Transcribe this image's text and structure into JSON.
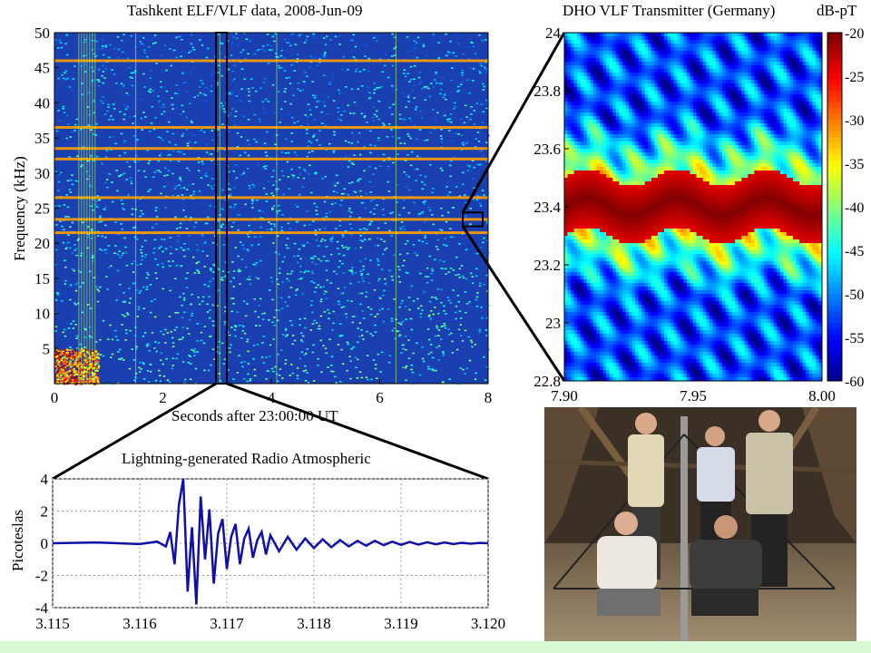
{
  "colors": {
    "spectrogram_bg": "#1a3fb0",
    "waveform": "#1010a8",
    "footer_band": "#d8f8d4"
  },
  "chart_data": [
    {
      "type": "heatmap",
      "title": "Tashkent ELF/VLF data, 2008-Jun-09",
      "xlabel": "Seconds after 23:00:00 UT",
      "ylabel": "Frequency (kHz)",
      "xlim": [
        0,
        8
      ],
      "ylim": [
        0,
        50
      ],
      "xticks": [
        "0",
        "2",
        "4",
        "6",
        "8"
      ],
      "yticks": [
        "5",
        "10",
        "15",
        "20",
        "25",
        "30",
        "35",
        "40",
        "45",
        "50"
      ],
      "bands_khz": [
        46,
        36.5,
        33.5,
        32,
        26.5,
        23.4,
        21.5
      ],
      "highlight_box": {
        "x": [
          2.98,
          3.18
        ],
        "y": [
          0,
          50
        ]
      },
      "zoom_box": {
        "x": [
          7.9,
          8.0
        ],
        "y": [
          22.8,
          24
        ]
      }
    },
    {
      "type": "heatmap",
      "title": "DHO VLF Transmitter (Germany)",
      "colorbar_label": "dB-pT",
      "xlim": [
        7.9,
        8.0
      ],
      "ylim": [
        22.8,
        24
      ],
      "xticks": [
        "7.90",
        "7.95",
        "8.00"
      ],
      "yticks": [
        "22.8",
        "23",
        "23.2",
        "23.4",
        "23.6",
        "23.8",
        "24"
      ],
      "colorbar_range": [
        -60,
        -20
      ],
      "colorbar_ticks": [
        "-20",
        "-25",
        "-30",
        "-35",
        "-40",
        "-45",
        "-50",
        "-55",
        "-60"
      ],
      "carrier_center_khz": 23.4,
      "carrier_halfwidth_khz": 0.1,
      "peak_level_db": -20
    },
    {
      "type": "line",
      "title": "Lightning-generated Radio Atmospheric",
      "xlabel": "",
      "ylabel": "Picoteslas",
      "xlim": [
        3.115,
        3.12
      ],
      "ylim": [
        -4,
        4
      ],
      "xticks": [
        "3.115",
        "3.116",
        "3.117",
        "3.118",
        "3.119",
        "3.120"
      ],
      "yticks": [
        "-4",
        "-2",
        "0",
        "2",
        "4"
      ],
      "grid": true,
      "series": [
        {
          "x": [
            3.115,
            3.1155,
            3.116,
            3.1162,
            3.1163,
            3.11635,
            3.1164,
            3.11645,
            3.1165,
            3.11655,
            3.1166,
            3.11665,
            3.1167,
            3.11675,
            3.1168,
            3.11685,
            3.1169,
            3.11695,
            3.117,
            3.11705,
            3.1171,
            3.11715,
            3.1172,
            3.11725,
            3.1173,
            3.11735,
            3.1174,
            3.11745,
            3.1175,
            3.1176,
            3.1177,
            3.1178,
            3.1179,
            3.118,
            3.1181,
            3.1182,
            3.1183,
            3.1184,
            3.1185,
            3.1186,
            3.1187,
            3.1188,
            3.1189,
            3.119,
            3.1191,
            3.1192,
            3.1193,
            3.1194,
            3.1195,
            3.1196,
            3.1197,
            3.1198,
            3.1199,
            3.12
          ],
          "y": [
            0,
            0.05,
            -0.05,
            0.1,
            -0.2,
            0.7,
            -1.3,
            2.4,
            4.0,
            -3.0,
            1.0,
            -3.8,
            2.9,
            -1.0,
            2.1,
            -2.5,
            0.6,
            1.5,
            -1.6,
            0.4,
            1.2,
            -1.3,
            0.3,
            0.9,
            -0.9,
            0.2,
            0.7,
            -0.7,
            0.5,
            -0.5,
            0.4,
            -0.4,
            0.3,
            -0.3,
            0.25,
            -0.25,
            0.2,
            -0.2,
            0.15,
            -0.15,
            0.15,
            -0.12,
            0.1,
            -0.1,
            0.08,
            -0.08,
            0.06,
            -0.06,
            0.05,
            -0.05,
            0.03,
            -0.03,
            0.02,
            0
          ]
        }
      ]
    }
  ],
  "photo": {
    "description_icon": "field-team-photo"
  }
}
